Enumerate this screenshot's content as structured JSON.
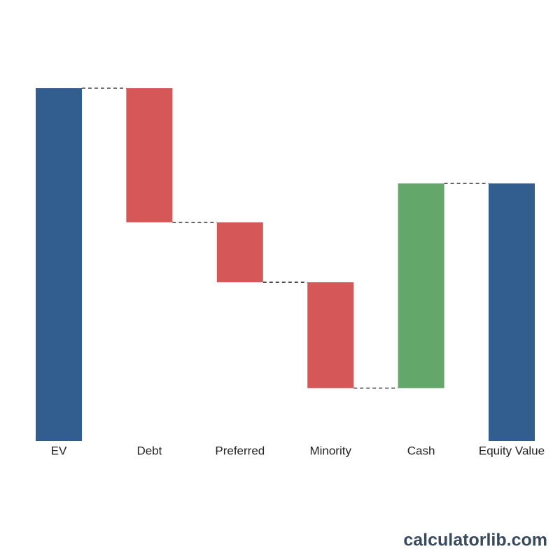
{
  "chart_data": {
    "type": "waterfall",
    "categories": [
      "EV",
      "Debt",
      "Preferred",
      "Minority",
      "Cash",
      "Equity Value"
    ],
    "values": [
      100,
      -38,
      -17,
      -30,
      58,
      73
    ],
    "measures": [
      "total",
      "relative",
      "relative",
      "relative",
      "relative",
      "total"
    ],
    "colors": {
      "total": "#325e8f",
      "decrease": "#d65757",
      "increase": "#64a76a"
    },
    "ylim": [
      0,
      100
    ],
    "watermark": "calculatorlib.com"
  }
}
